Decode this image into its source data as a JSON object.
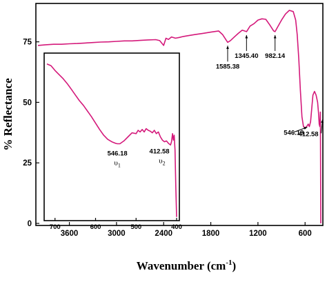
{
  "chart_data": {
    "type": "line",
    "xlabel": "Wavenumber (cm",
    "xlabel_sup": "-1",
    "xlabel_end": ")",
    "ylabel": "% Reflectance",
    "xlim": [
      4000,
      400
    ],
    "ylim": [
      0,
      90
    ],
    "x_reversed": true,
    "xticks": [
      3600,
      3000,
      2400,
      1800,
      1200,
      600
    ],
    "yticks": [
      0,
      25,
      50,
      75
    ],
    "series": [
      {
        "color": "#d4187a",
        "x": [
          4000,
          3900,
          3800,
          3700,
          3600,
          3500,
          3400,
          3300,
          3200,
          3100,
          3000,
          2900,
          2800,
          2700,
          2600,
          2500,
          2450,
          2400,
          2370,
          2340,
          2300,
          2250,
          2200,
          2150,
          2100,
          2000,
          1900,
          1800,
          1700,
          1650,
          1585,
          1550,
          1500,
          1450,
          1400,
          1345,
          1320,
          1300,
          1250,
          1200,
          1150,
          1100,
          1050,
          1000,
          982,
          960,
          900,
          850,
          800,
          750,
          720,
          700,
          680,
          660,
          640,
          620,
          600,
          580,
          560,
          546,
          530,
          500,
          480,
          460,
          440,
          430,
          420,
          412,
          405,
          400
        ],
        "y": [
          73.5,
          73.8,
          74,
          74,
          74.2,
          74.3,
          74.5,
          74.7,
          74.9,
          75,
          75.2,
          75.4,
          75.4,
          75.6,
          75.8,
          75.9,
          75.5,
          73.5,
          76.5,
          76,
          77,
          76.5,
          76.8,
          77.2,
          77.5,
          78,
          78.5,
          79,
          79.5,
          78,
          74.8,
          75.5,
          77,
          78.5,
          79.8,
          79.2,
          80.5,
          81.5,
          82.5,
          84,
          84.5,
          84.3,
          82,
          79.5,
          79.2,
          80.5,
          84,
          86.5,
          88,
          87.5,
          84,
          78,
          68,
          55,
          44,
          40,
          39.5,
          40,
          41,
          40,
          42,
          53,
          54.5,
          53,
          50,
          46,
          41,
          40,
          46,
          0
        ]
      }
    ],
    "annotations": [
      {
        "text": "1585.38",
        "x": 1585.38
      },
      {
        "text": "1345.40",
        "x": 1345.4
      },
      {
        "text": "982.14",
        "x": 982.14
      },
      {
        "text": "546.18",
        "x": 546.18
      },
      {
        "text": "412.58",
        "x": 412.58
      }
    ],
    "inset": {
      "xlim": [
        720,
        400
      ],
      "ylim": [
        0,
        1
      ],
      "xticks": [
        700,
        600,
        500,
        400
      ],
      "series_color": "#d4187a",
      "x": [
        720,
        710,
        700,
        690,
        680,
        670,
        660,
        650,
        640,
        630,
        620,
        610,
        600,
        590,
        580,
        570,
        560,
        550,
        546,
        540,
        530,
        520,
        510,
        500,
        495,
        490,
        485,
        480,
        475,
        470,
        465,
        460,
        455,
        450,
        445,
        440,
        435,
        430,
        425,
        420,
        415,
        412.58,
        410,
        408,
        406,
        404,
        402,
        400
      ],
      "y": [
        0.946,
        0.936,
        0.906,
        0.881,
        0.856,
        0.826,
        0.792,
        0.757,
        0.722,
        0.693,
        0.658,
        0.623,
        0.584,
        0.545,
        0.51,
        0.485,
        0.47,
        0.46,
        0.458,
        0.458,
        0.475,
        0.5,
        0.525,
        0.52,
        0.54,
        0.53,
        0.545,
        0.53,
        0.55,
        0.54,
        0.535,
        0.525,
        0.54,
        0.52,
        0.53,
        0.5,
        0.48,
        0.47,
        0.475,
        0.46,
        0.45,
        0.47,
        0.52,
        0.48,
        0.51,
        0.42,
        0.2,
        0.01
      ],
      "annotations": [
        {
          "text": "546.18",
          "mode": "υ",
          "mode_sub": "1",
          "x": 546.18
        },
        {
          "text": "412.58",
          "mode": "υ",
          "mode_sub": "2",
          "x": 412.58
        }
      ]
    }
  }
}
